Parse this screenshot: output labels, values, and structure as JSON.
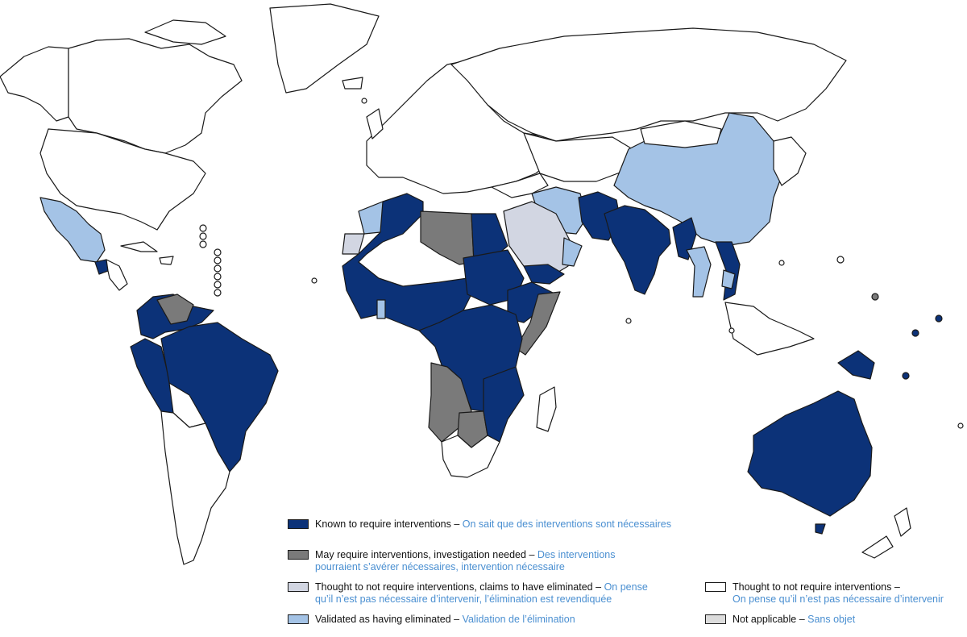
{
  "colors": {
    "known": "#0c3278",
    "may": "#7a7a7a",
    "thought_claims": "#d2d6e2",
    "thought_not": "#ffffff",
    "validated": "#a4c3e6",
    "not_applicable": "#dcdcdc",
    "border": "#1a1a1a",
    "french_text": "#4a8fd1"
  },
  "legend": [
    {
      "key": "known",
      "en": "Known to require interventions",
      "fr_lines": [
        "On sait que des interventions sont nécessaires"
      ]
    },
    {
      "key": "may",
      "en": "May require interventions, investigation needed",
      "fr_lines": [
        "Des interventions",
        "pourraient s’avérer nécessaires, intervention nécessaire"
      ]
    },
    {
      "key": "thought_claims",
      "en": "Thought to not require interventions, claims to have eliminated",
      "fr_lines": [
        "On pense",
        "qu’il n’est pas nécessaire d’intervenir, l’élimination est revendiquée"
      ]
    },
    {
      "key": "validated",
      "en": "Validated as having eliminated",
      "fr_lines": [
        "Validation de l’élimination"
      ]
    },
    {
      "key": "thought_not",
      "en": "Thought to not require interventions",
      "fr_lines": [
        "On pense qu’il n’est pas nécessaire d’intervenir"
      ]
    },
    {
      "key": "not_applicable",
      "en": "Not applicable",
      "fr_lines": [
        "Sans objet"
      ]
    }
  ],
  "separator": "–"
}
